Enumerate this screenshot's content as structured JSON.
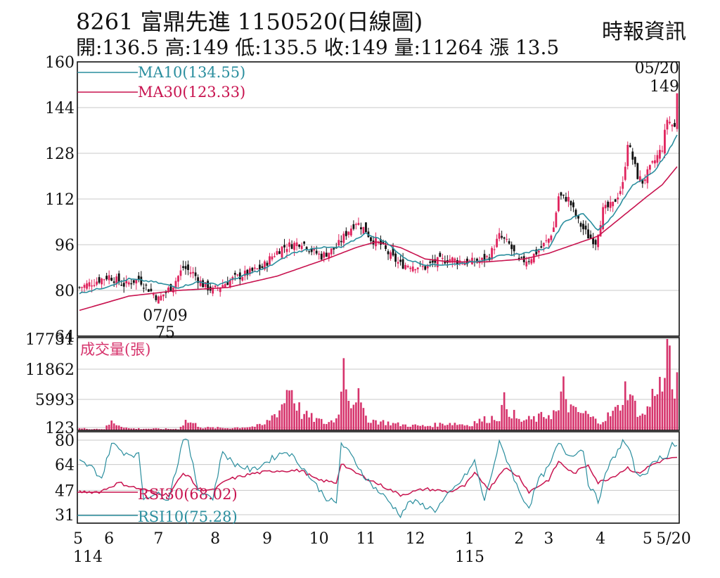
{
  "header": {
    "title": "8261  富鼎先進 1150520(日線圖)",
    "stats": "開:136.5 高:149 低:135.5 收:149 量:11264 漲 13.5",
    "source": "時報資訊"
  },
  "colors": {
    "up": "#e0245e",
    "down": "#111111",
    "ma10": "#2a8e9e",
    "ma30": "#c8134f",
    "volume": "#d6336c",
    "rsi30": "#c8134f",
    "rsi10": "#2a8e9e",
    "grid": "#c8c8c8"
  },
  "chart_data": {
    "type": "candlestick",
    "price_axis": {
      "ticks": [
        "160",
        "144",
        "128",
        "112",
        "96",
        "80",
        "64"
      ],
      "range": [
        64,
        160
      ]
    },
    "volume_axis": {
      "ticks": [
        "17731",
        "11862",
        "5993",
        "123"
      ],
      "range": [
        0,
        17731
      ],
      "label": "成交量(張)"
    },
    "rsi_axis": {
      "ticks": [
        "80",
        "64",
        "47",
        "31"
      ],
      "range": [
        31,
        80
      ]
    },
    "legend": [
      {
        "key": "ma10",
        "text": "MA10(134.55)"
      },
      {
        "key": "ma30",
        "text": "MA30(123.33)"
      }
    ],
    "rsi_legend": [
      {
        "key": "rsi30",
        "text": "RSI30(68.02)"
      },
      {
        "key": "rsi10",
        "text": "RSI10(75.28)"
      }
    ],
    "annotations": {
      "high_date": "05/20",
      "high_value": "149",
      "low_date": "07/09",
      "low_value": "75"
    },
    "x_ticks": [
      {
        "label": "5",
        "sub": "114",
        "day": 0
      },
      {
        "label": "6",
        "day": 12
      },
      {
        "label": "7",
        "day": 32
      },
      {
        "label": "8",
        "day": 55
      },
      {
        "label": "9",
        "day": 76
      },
      {
        "label": "10",
        "day": 97
      },
      {
        "label": "11",
        "day": 116
      },
      {
        "label": "12",
        "day": 136
      },
      {
        "label": "1",
        "sub": "115",
        "day": 158
      },
      {
        "label": "2",
        "day": 178
      },
      {
        "label": "3",
        "day": 190
      },
      {
        "label": "4",
        "day": 211
      },
      {
        "label": "5",
        "day": 230
      },
      {
        "label": "5/20",
        "day": 242
      }
    ],
    "close_anchors": [
      [
        0,
        81
      ],
      [
        6,
        83
      ],
      [
        12,
        85
      ],
      [
        18,
        82
      ],
      [
        24,
        84
      ],
      [
        32,
        77
      ],
      [
        38,
        82
      ],
      [
        42,
        88
      ],
      [
        46,
        86
      ],
      [
        50,
        82
      ],
      [
        54,
        80
      ],
      [
        58,
        82
      ],
      [
        62,
        84
      ],
      [
        68,
        86
      ],
      [
        74,
        88
      ],
      [
        78,
        92
      ],
      [
        82,
        95
      ],
      [
        86,
        96
      ],
      [
        90,
        97
      ],
      [
        94,
        94
      ],
      [
        98,
        92
      ],
      [
        104,
        95
      ],
      [
        108,
        100
      ],
      [
        112,
        104
      ],
      [
        116,
        101
      ],
      [
        118,
        98
      ],
      [
        122,
        96
      ],
      [
        126,
        92
      ],
      [
        130,
        89
      ],
      [
        134,
        89
      ],
      [
        140,
        88
      ],
      [
        144,
        90
      ],
      [
        150,
        91
      ],
      [
        156,
        90
      ],
      [
        162,
        90
      ],
      [
        166,
        92
      ],
      [
        170,
        99
      ],
      [
        174,
        96
      ],
      [
        178,
        90
      ],
      [
        182,
        91
      ],
      [
        186,
        94
      ],
      [
        190,
        98
      ],
      [
        192,
        102
      ],
      [
        194,
        113
      ],
      [
        198,
        112
      ],
      [
        202,
        104
      ],
      [
        206,
        99
      ],
      [
        209,
        97
      ],
      [
        212,
        108
      ],
      [
        216,
        110
      ],
      [
        220,
        117
      ],
      [
        222,
        132
      ],
      [
        224,
        126
      ],
      [
        226,
        120
      ],
      [
        228,
        118
      ],
      [
        232,
        124
      ],
      [
        236,
        130
      ],
      [
        238,
        140
      ],
      [
        241,
        137
      ],
      [
        242,
        149
      ]
    ],
    "ma10_anchors": [
      [
        0,
        79
      ],
      [
        10,
        81
      ],
      [
        20,
        84
      ],
      [
        30,
        83
      ],
      [
        40,
        81
      ],
      [
        48,
        83
      ],
      [
        56,
        82
      ],
      [
        66,
        85
      ],
      [
        76,
        88
      ],
      [
        86,
        93
      ],
      [
        96,
        95
      ],
      [
        106,
        95
      ],
      [
        116,
        100
      ],
      [
        124,
        97
      ],
      [
        132,
        91
      ],
      [
        140,
        89
      ],
      [
        150,
        89
      ],
      [
        160,
        90
      ],
      [
        170,
        92
      ],
      [
        180,
        93
      ],
      [
        190,
        95
      ],
      [
        196,
        104
      ],
      [
        204,
        107
      ],
      [
        210,
        101
      ],
      [
        216,
        106
      ],
      [
        224,
        117
      ],
      [
        232,
        121
      ],
      [
        238,
        128
      ],
      [
        242,
        134.55
      ]
    ],
    "ma30_anchors": [
      [
        0,
        73
      ],
      [
        20,
        78
      ],
      [
        40,
        80
      ],
      [
        60,
        81
      ],
      [
        80,
        85
      ],
      [
        100,
        91
      ],
      [
        112,
        95
      ],
      [
        120,
        97
      ],
      [
        130,
        95
      ],
      [
        140,
        91
      ],
      [
        150,
        90
      ],
      [
        165,
        90
      ],
      [
        180,
        91
      ],
      [
        190,
        93
      ],
      [
        200,
        96
      ],
      [
        210,
        99
      ],
      [
        220,
        106
      ],
      [
        230,
        113
      ],
      [
        236,
        117
      ],
      [
        242,
        123.33
      ]
    ],
    "volume_anchors": [
      [
        0,
        400
      ],
      [
        10,
        300
      ],
      [
        13,
        1800
      ],
      [
        20,
        400
      ],
      [
        40,
        300
      ],
      [
        43,
        2000
      ],
      [
        46,
        1500
      ],
      [
        50,
        600
      ],
      [
        60,
        500
      ],
      [
        70,
        800
      ],
      [
        75,
        1200
      ],
      [
        77,
        2500
      ],
      [
        81,
        4500
      ],
      [
        83,
        6500
      ],
      [
        85,
        10500
      ],
      [
        87,
        7000
      ],
      [
        90,
        3500
      ],
      [
        100,
        1500
      ],
      [
        104,
        2500
      ],
      [
        106,
        7500
      ],
      [
        107,
        17731
      ],
      [
        108,
        12000
      ],
      [
        110,
        5500
      ],
      [
        112,
        8500
      ],
      [
        115,
        3500
      ],
      [
        118,
        2200
      ],
      [
        130,
        1200
      ],
      [
        140,
        900
      ],
      [
        150,
        1600
      ],
      [
        158,
        1100
      ],
      [
        160,
        1800
      ],
      [
        170,
        3000
      ],
      [
        172,
        6000
      ],
      [
        174,
        4500
      ],
      [
        178,
        2000
      ],
      [
        185,
        2500
      ],
      [
        190,
        3500
      ],
      [
        194,
        4000
      ],
      [
        196,
        9000
      ],
      [
        198,
        5500
      ],
      [
        200,
        4000
      ],
      [
        205,
        3500
      ],
      [
        210,
        1800
      ],
      [
        214,
        3000
      ],
      [
        218,
        4500
      ],
      [
        222,
        10000
      ],
      [
        224,
        6000
      ],
      [
        228,
        3000
      ],
      [
        231,
        5500
      ],
      [
        234,
        11000
      ],
      [
        236,
        8000
      ],
      [
        238,
        17731
      ],
      [
        240,
        9000
      ],
      [
        242,
        11264
      ]
    ],
    "rsi30_anchors": [
      [
        0,
        46
      ],
      [
        8,
        46
      ],
      [
        16,
        52
      ],
      [
        24,
        48
      ],
      [
        30,
        46
      ],
      [
        36,
        44
      ],
      [
        42,
        58
      ],
      [
        44,
        57
      ],
      [
        48,
        48
      ],
      [
        54,
        47
      ],
      [
        60,
        54
      ],
      [
        70,
        58
      ],
      [
        80,
        60
      ],
      [
        90,
        60
      ],
      [
        96,
        54
      ],
      [
        104,
        52
      ],
      [
        106,
        65
      ],
      [
        110,
        60
      ],
      [
        120,
        52
      ],
      [
        130,
        44
      ],
      [
        140,
        48
      ],
      [
        150,
        46
      ],
      [
        156,
        50
      ],
      [
        160,
        58
      ],
      [
        166,
        48
      ],
      [
        172,
        62
      ],
      [
        178,
        56
      ],
      [
        182,
        46
      ],
      [
        190,
        54
      ],
      [
        194,
        66
      ],
      [
        200,
        58
      ],
      [
        206,
        64
      ],
      [
        210,
        52
      ],
      [
        216,
        56
      ],
      [
        222,
        62
      ],
      [
        226,
        58
      ],
      [
        232,
        64
      ],
      [
        238,
        68
      ],
      [
        242,
        68.02
      ]
    ],
    "rsi10_anchors": [
      [
        0,
        66
      ],
      [
        5,
        62
      ],
      [
        9,
        55
      ],
      [
        13,
        78
      ],
      [
        18,
        72
      ],
      [
        24,
        70
      ],
      [
        26,
        42
      ],
      [
        30,
        45
      ],
      [
        36,
        42
      ],
      [
        40,
        66
      ],
      [
        42,
        82
      ],
      [
        44,
        78
      ],
      [
        48,
        48
      ],
      [
        54,
        42
      ],
      [
        58,
        73
      ],
      [
        62,
        65
      ],
      [
        70,
        60
      ],
      [
        80,
        70
      ],
      [
        84,
        73
      ],
      [
        90,
        63
      ],
      [
        96,
        50
      ],
      [
        100,
        42
      ],
      [
        104,
        38
      ],
      [
        106,
        78
      ],
      [
        110,
        70
      ],
      [
        116,
        55
      ],
      [
        120,
        48
      ],
      [
        124,
        42
      ],
      [
        130,
        31
      ],
      [
        134,
        40
      ],
      [
        138,
        38
      ],
      [
        144,
        34
      ],
      [
        150,
        45
      ],
      [
        156,
        56
      ],
      [
        160,
        66
      ],
      [
        164,
        40
      ],
      [
        170,
        78
      ],
      [
        174,
        64
      ],
      [
        178,
        46
      ],
      [
        182,
        36
      ],
      [
        186,
        54
      ],
      [
        190,
        62
      ],
      [
        194,
        78
      ],
      [
        198,
        70
      ],
      [
        204,
        74
      ],
      [
        206,
        52
      ],
      [
        210,
        40
      ],
      [
        214,
        62
      ],
      [
        220,
        79
      ],
      [
        222,
        76
      ],
      [
        226,
        56
      ],
      [
        230,
        60
      ],
      [
        234,
        68
      ],
      [
        238,
        70
      ],
      [
        240,
        78
      ],
      [
        242,
        75.28
      ]
    ]
  }
}
